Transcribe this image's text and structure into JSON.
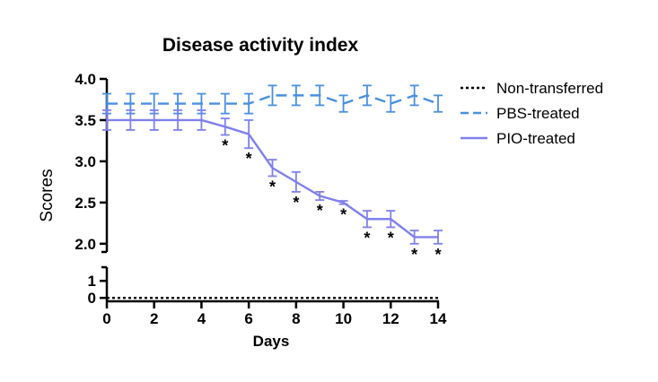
{
  "chart_data": {
    "type": "line",
    "title": "Disease activity index",
    "xlabel": "Days",
    "ylabel": "Scores",
    "xlim": [
      0,
      14
    ],
    "x_ticks": [
      "0",
      "2",
      "4",
      "6",
      "8",
      "10",
      "12",
      "14"
    ],
    "ylim_upper": [
      1.9,
      4.0
    ],
    "ylim_lower": [
      -0.2,
      1.8
    ],
    "y_ticks_upper": [
      "2.0",
      "2.5",
      "3.0",
      "3.5",
      "4.0"
    ],
    "y_ticks_lower": [
      "0",
      "1"
    ],
    "axis_break": true,
    "grid": false,
    "legend_position": "right",
    "x": [
      0,
      1,
      2,
      3,
      4,
      5,
      6,
      7,
      8,
      9,
      10,
      11,
      12,
      13,
      14
    ],
    "series": [
      {
        "name": "Non-transferred",
        "color": "#000000",
        "dash": "dotted",
        "values": [
          0,
          0,
          0,
          0,
          0,
          0,
          0,
          0,
          0,
          0,
          0,
          0,
          0,
          0,
          0
        ],
        "errors": [
          0,
          0,
          0,
          0,
          0,
          0,
          0,
          0,
          0,
          0,
          0,
          0,
          0,
          0,
          0
        ]
      },
      {
        "name": "PBS-treated",
        "color": "#4a90e2",
        "dash": "dashed",
        "values": [
          3.7,
          3.7,
          3.7,
          3.7,
          3.7,
          3.7,
          3.7,
          3.8,
          3.8,
          3.8,
          3.7,
          3.8,
          3.7,
          3.8,
          3.7
        ],
        "errors": [
          0.12,
          0.12,
          0.12,
          0.12,
          0.12,
          0.12,
          0.12,
          0.12,
          0.12,
          0.12,
          0.1,
          0.12,
          0.1,
          0.12,
          0.1
        ]
      },
      {
        "name": "PIO-treated",
        "color": "#8080ee",
        "dash": "solid",
        "values": [
          3.5,
          3.5,
          3.5,
          3.5,
          3.5,
          3.42,
          3.33,
          2.92,
          2.75,
          2.58,
          2.5,
          2.3,
          2.3,
          2.08,
          2.08
        ],
        "errors": [
          0.12,
          0.12,
          0.12,
          0.12,
          0.12,
          0.1,
          0.17,
          0.1,
          0.12,
          0.05,
          0.02,
          0.1,
          0.1,
          0.08,
          0.08
        ]
      }
    ],
    "significance_marker": "*",
    "significant_x": [
      5,
      6,
      7,
      8,
      9,
      10,
      11,
      12,
      13,
      14
    ]
  }
}
